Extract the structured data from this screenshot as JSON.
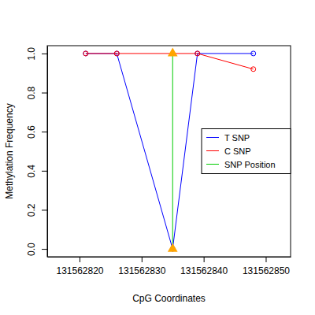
{
  "chart_data": {
    "type": "line",
    "x_label": "CpG Coordinates",
    "y_label": "Methylation Frequency",
    "xlim": [
      131562814.8,
      131562854
    ],
    "xticks": [
      131562820,
      131562830,
      131562840,
      131562850
    ],
    "ylim": [
      -0.04,
      1.04
    ],
    "yticks": [
      {
        "value": 0,
        "label": "0.0"
      },
      {
        "value": 0.2,
        "label": "0.2"
      },
      {
        "value": 0.4,
        "label": "0.4"
      },
      {
        "value": 0.6,
        "label": "0.6"
      },
      {
        "value": 0.8,
        "label": "0.8"
      },
      {
        "value": 1,
        "label": "1.0"
      }
    ],
    "grid": false,
    "legend": "right",
    "series": [
      {
        "name": "T SNP",
        "color": "#0000FF",
        "marker": "circle",
        "x": [
          131562821,
          131562826,
          131562835,
          131562839,
          131562848
        ],
        "values": [
          1,
          1,
          0,
          1,
          1
        ]
      },
      {
        "name": "C SNP",
        "color": "#FF0000",
        "marker": "circle",
        "x": [
          131562821,
          131562826,
          131562839,
          131562848
        ],
        "values": [
          1,
          1,
          1,
          0.92
        ]
      },
      {
        "name": "SNP Position",
        "color": "#00CC00",
        "marker": "triangle",
        "x": [
          131562835,
          131562835
        ],
        "values": [
          0,
          1
        ]
      }
    ]
  }
}
